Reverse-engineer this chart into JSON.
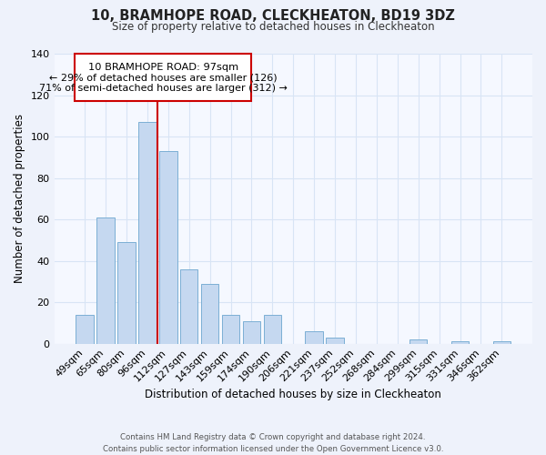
{
  "title": "10, BRAMHOPE ROAD, CLECKHEATON, BD19 3DZ",
  "subtitle": "Size of property relative to detached houses in Cleckheaton",
  "xlabel": "Distribution of detached houses by size in Cleckheaton",
  "ylabel": "Number of detached properties",
  "bar_labels": [
    "49sqm",
    "65sqm",
    "80sqm",
    "96sqm",
    "112sqm",
    "127sqm",
    "143sqm",
    "159sqm",
    "174sqm",
    "190sqm",
    "206sqm",
    "221sqm",
    "237sqm",
    "252sqm",
    "268sqm",
    "284sqm",
    "299sqm",
    "315sqm",
    "331sqm",
    "346sqm",
    "362sqm"
  ],
  "bar_values": [
    14,
    61,
    49,
    107,
    93,
    36,
    29,
    14,
    11,
    14,
    0,
    6,
    3,
    0,
    0,
    0,
    2,
    0,
    1,
    0,
    1
  ],
  "bar_color": "#c5d8f0",
  "bar_edge_color": "#7bafd4",
  "vline_color": "#cc0000",
  "vline_bar_index": 4,
  "annotation_text_line1": "10 BRAMHOPE ROAD: 97sqm",
  "annotation_text_line2": "← 29% of detached houses are smaller (126)",
  "annotation_text_line3": "71% of semi-detached houses are larger (312) →",
  "ylim": [
    0,
    140
  ],
  "yticks": [
    0,
    20,
    40,
    60,
    80,
    100,
    120,
    140
  ],
  "footer_line1": "Contains HM Land Registry data © Crown copyright and database right 2024.",
  "footer_line2": "Contains public sector information licensed under the Open Government Licence v3.0.",
  "bg_color": "#eef2fb",
  "plot_bg_color": "#f5f8ff",
  "grid_color": "#d8e4f5"
}
